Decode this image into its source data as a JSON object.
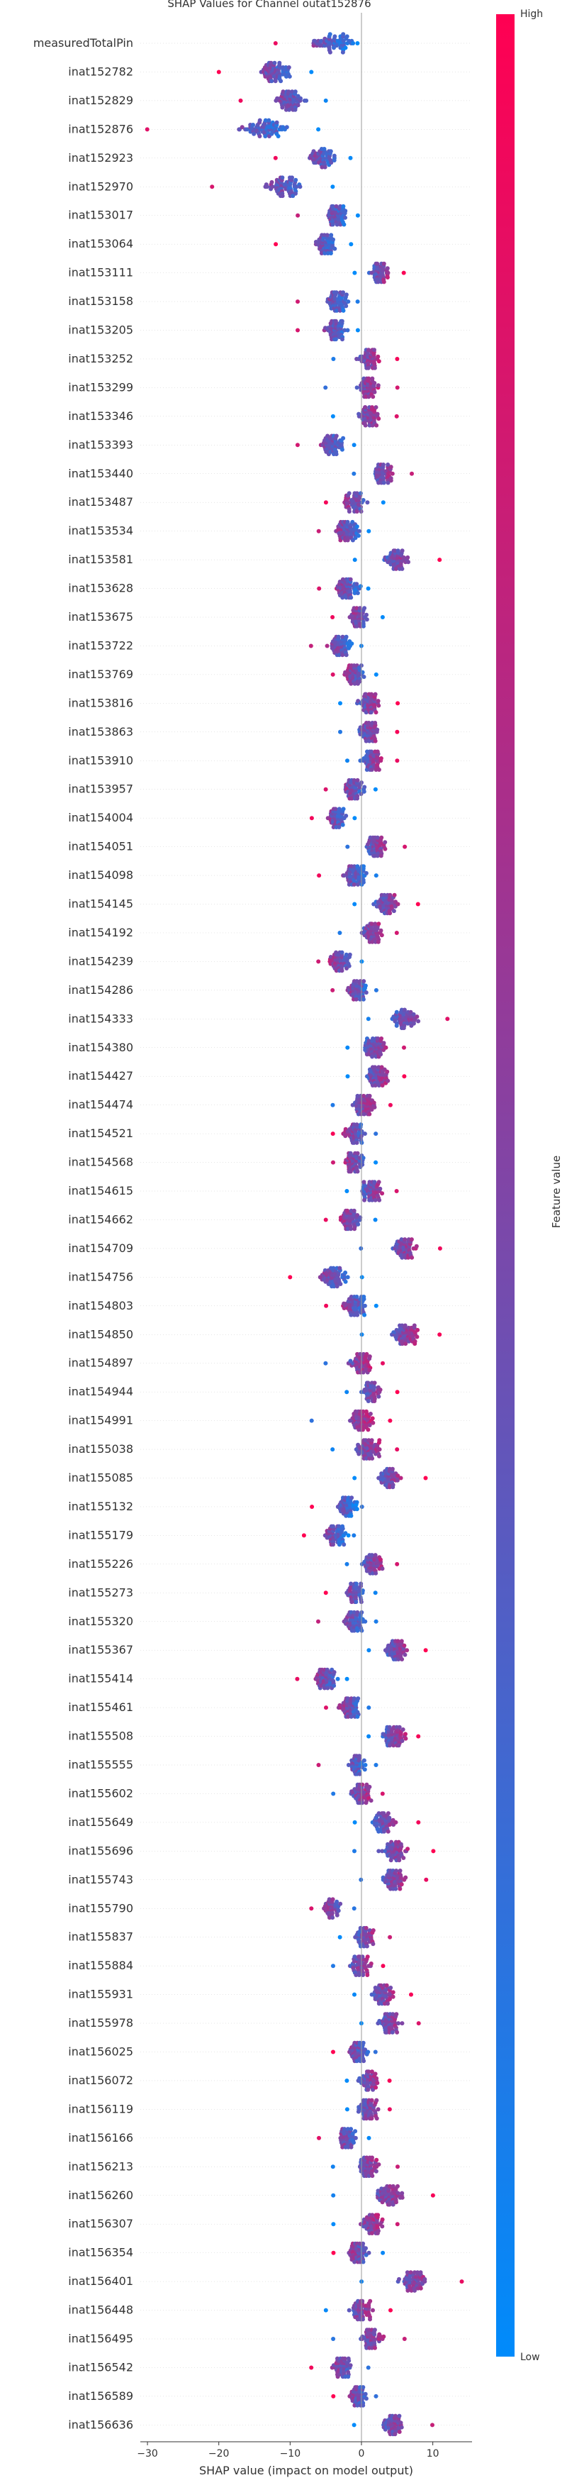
{
  "chart_data": {
    "type": "scatter",
    "subtype": "beeswarm",
    "title": "SHAP Values for Channel outat152876",
    "xlabel": "SHAP value (impact on model output)",
    "xlim": [
      -31,
      15.5
    ],
    "xticks": [
      -30,
      -20,
      -10,
      0,
      10
    ],
    "colorbar": {
      "label": "Feature value",
      "high_label": "High",
      "low_label": "Low",
      "high_color": "#ff0052",
      "low_color": "#008bfb"
    },
    "features": [
      {
        "name": "measuredTotalPin",
        "min": -12,
        "max": -0.5,
        "center": -4,
        "spread": 4
      },
      {
        "name": "inat152782",
        "min": -20,
        "max": -7,
        "center": -12,
        "spread": 3
      },
      {
        "name": "inat152829",
        "min": -17,
        "max": -5,
        "center": -10,
        "spread": 3
      },
      {
        "name": "inat152876",
        "min": -30,
        "max": -6,
        "center": -14,
        "spread": 4
      },
      {
        "name": "inat152923",
        "min": -12,
        "max": -1.5,
        "center": -5.5,
        "spread": 2.5
      },
      {
        "name": "inat152970",
        "min": -21,
        "max": -4,
        "center": -11,
        "spread": 3.5
      },
      {
        "name": "inat153017",
        "min": -9,
        "max": -0.5,
        "center": -3.5,
        "spread": 2
      },
      {
        "name": "inat153064",
        "min": -12,
        "max": -1.5,
        "center": -5,
        "spread": 2
      },
      {
        "name": "inat153111",
        "min": -1,
        "max": 6,
        "center": 2.5,
        "spread": 1.8
      },
      {
        "name": "inat153158",
        "min": -9,
        "max": -0.5,
        "center": -3.5,
        "spread": 2
      },
      {
        "name": "inat153205",
        "min": -9,
        "max": -0.5,
        "center": -3.5,
        "spread": 2
      },
      {
        "name": "inat153252",
        "min": -4,
        "max": 5,
        "center": 1,
        "spread": 2
      },
      {
        "name": "inat153299",
        "min": -5,
        "max": 5,
        "center": 1,
        "spread": 2
      },
      {
        "name": "inat153346",
        "min": -4,
        "max": 5,
        "center": 1,
        "spread": 2
      },
      {
        "name": "inat153393",
        "min": -9,
        "max": -1,
        "center": -4,
        "spread": 2
      },
      {
        "name": "inat153440",
        "min": -1,
        "max": 7,
        "center": 3,
        "spread": 2
      },
      {
        "name": "inat153487",
        "min": -5,
        "max": 3,
        "center": -1,
        "spread": 2
      },
      {
        "name": "inat153534",
        "min": -6,
        "max": 1,
        "center": -2,
        "spread": 2
      },
      {
        "name": "inat153581",
        "min": -1,
        "max": 11,
        "center": 5,
        "spread": 2.5
      },
      {
        "name": "inat153628",
        "min": -6,
        "max": 1,
        "center": -2,
        "spread": 2
      },
      {
        "name": "inat153675",
        "min": -4,
        "max": 3,
        "center": -0.5,
        "spread": 1.8
      },
      {
        "name": "inat153722",
        "min": -7,
        "max": 0,
        "center": -3,
        "spread": 2
      },
      {
        "name": "inat153769",
        "min": -4,
        "max": 2,
        "center": -1,
        "spread": 1.8
      },
      {
        "name": "inat153816",
        "min": -3,
        "max": 5,
        "center": 1,
        "spread": 2
      },
      {
        "name": "inat153863",
        "min": -3,
        "max": 5,
        "center": 1,
        "spread": 2
      },
      {
        "name": "inat153910",
        "min": -2,
        "max": 5,
        "center": 1.5,
        "spread": 1.8
      },
      {
        "name": "inat153957",
        "min": -5,
        "max": 2,
        "center": -1,
        "spread": 1.8
      },
      {
        "name": "inat154004",
        "min": -7,
        "max": -1,
        "center": -3.5,
        "spread": 1.8
      },
      {
        "name": "inat154051",
        "min": -2,
        "max": 6,
        "center": 2,
        "spread": 2
      },
      {
        "name": "inat154098",
        "min": -6,
        "max": 2,
        "center": -1,
        "spread": 2
      },
      {
        "name": "inat154145",
        "min": -1,
        "max": 8,
        "center": 3.5,
        "spread": 2
      },
      {
        "name": "inat154192",
        "min": -3,
        "max": 5,
        "center": 1.5,
        "spread": 2
      },
      {
        "name": "inat154239",
        "min": -6,
        "max": 0,
        "center": -3,
        "spread": 1.8
      },
      {
        "name": "inat154286",
        "min": -4,
        "max": 2,
        "center": -0.5,
        "spread": 1.8
      },
      {
        "name": "inat154333",
        "min": 1,
        "max": 12,
        "center": 6,
        "spread": 2.5
      },
      {
        "name": "inat154380",
        "min": -2,
        "max": 6,
        "center": 2,
        "spread": 2
      },
      {
        "name": "inat154427",
        "min": -2,
        "max": 6,
        "center": 2,
        "spread": 2
      },
      {
        "name": "inat154474",
        "min": -4,
        "max": 4,
        "center": 0.5,
        "spread": 2
      },
      {
        "name": "inat154521",
        "min": -4,
        "max": 2,
        "center": -1,
        "spread": 1.8
      },
      {
        "name": "inat154568",
        "min": -4,
        "max": 2,
        "center": -1,
        "spread": 1.8
      },
      {
        "name": "inat154615",
        "min": -2,
        "max": 5,
        "center": 1.5,
        "spread": 2
      },
      {
        "name": "inat154662",
        "min": -5,
        "max": 2,
        "center": -1.5,
        "spread": 1.8
      },
      {
        "name": "inat154709",
        "min": 0,
        "max": 11,
        "center": 6,
        "spread": 2.5
      },
      {
        "name": "inat154756",
        "min": -10,
        "max": 0,
        "center": -4,
        "spread": 2.5
      },
      {
        "name": "inat154803",
        "min": -5,
        "max": 2,
        "center": -1,
        "spread": 2
      },
      {
        "name": "inat154850",
        "min": 0,
        "max": 11,
        "center": 6,
        "spread": 2.5
      },
      {
        "name": "inat154897",
        "min": -5,
        "max": 3,
        "center": 0,
        "spread": 2
      },
      {
        "name": "inat154944",
        "min": -2,
        "max": 5,
        "center": 1.5,
        "spread": 1.8
      },
      {
        "name": "inat154991",
        "min": -7,
        "max": 4,
        "center": 0,
        "spread": 2
      },
      {
        "name": "inat155038",
        "min": -4,
        "max": 5,
        "center": 1,
        "spread": 2
      },
      {
        "name": "inat155085",
        "min": -1,
        "max": 9,
        "center": 4,
        "spread": 2.2
      },
      {
        "name": "inat155132",
        "min": -7,
        "max": 0,
        "center": -2,
        "spread": 1.8
      },
      {
        "name": "inat155179",
        "min": -8,
        "max": -1,
        "center": -3.5,
        "spread": 2
      },
      {
        "name": "inat155226",
        "min": -2,
        "max": 5,
        "center": 1.5,
        "spread": 1.8
      },
      {
        "name": "inat155273",
        "min": -5,
        "max": 2,
        "center": -1,
        "spread": 1.8
      },
      {
        "name": "inat155320",
        "min": -6,
        "max": 2,
        "center": -1,
        "spread": 2
      },
      {
        "name": "inat155367",
        "min": 1,
        "max": 9,
        "center": 5,
        "spread": 2
      },
      {
        "name": "inat155414",
        "min": -9,
        "max": -2,
        "center": -5,
        "spread": 2
      },
      {
        "name": "inat155461",
        "min": -5,
        "max": 1,
        "center": -1.5,
        "spread": 1.8
      },
      {
        "name": "inat155508",
        "min": 1,
        "max": 8,
        "center": 4.5,
        "spread": 2
      },
      {
        "name": "inat155555",
        "min": -6,
        "max": 2,
        "center": -0.5,
        "spread": 1.8
      },
      {
        "name": "inat155602",
        "min": -4,
        "max": 3,
        "center": 0,
        "spread": 1.8
      },
      {
        "name": "inat155649",
        "min": -1,
        "max": 8,
        "center": 3,
        "spread": 2
      },
      {
        "name": "inat155696",
        "min": -1,
        "max": 10,
        "center": 4.5,
        "spread": 2.5
      },
      {
        "name": "inat155743",
        "min": 0,
        "max": 9,
        "center": 4.5,
        "spread": 2
      },
      {
        "name": "inat155790",
        "min": -7,
        "max": -1,
        "center": -4,
        "spread": 1.8
      },
      {
        "name": "inat155837",
        "min": -3,
        "max": 4,
        "center": 0.5,
        "spread": 1.8
      },
      {
        "name": "inat155884",
        "min": -4,
        "max": 3,
        "center": 0,
        "spread": 1.8
      },
      {
        "name": "inat155931",
        "min": -1,
        "max": 7,
        "center": 3,
        "spread": 2
      },
      {
        "name": "inat155978",
        "min": 0,
        "max": 8,
        "center": 4,
        "spread": 2
      },
      {
        "name": "inat156025",
        "min": -4,
        "max": 2,
        "center": -0.5,
        "spread": 1.8
      },
      {
        "name": "inat156072",
        "min": -2,
        "max": 4,
        "center": 1,
        "spread": 1.8
      },
      {
        "name": "inat156119",
        "min": -2,
        "max": 4,
        "center": 1,
        "spread": 1.8
      },
      {
        "name": "inat156166",
        "min": -6,
        "max": 1,
        "center": -2,
        "spread": 1.8
      },
      {
        "name": "inat156213",
        "min": -4,
        "max": 5,
        "center": 1,
        "spread": 2
      },
      {
        "name": "inat156260",
        "min": -4,
        "max": 10,
        "center": 4,
        "spread": 2.5
      },
      {
        "name": "inat156307",
        "min": -4,
        "max": 5,
        "center": 1.5,
        "spread": 2
      },
      {
        "name": "inat156354",
        "min": -4,
        "max": 3,
        "center": -0.5,
        "spread": 1.8
      },
      {
        "name": "inat156401",
        "min": 0,
        "max": 14,
        "center": 7,
        "spread": 2.5
      },
      {
        "name": "inat156448",
        "min": -5,
        "max": 4,
        "center": 0,
        "spread": 2
      },
      {
        "name": "inat156495",
        "min": -4,
        "max": 6,
        "center": 1.5,
        "spread": 2
      },
      {
        "name": "inat156542",
        "min": -7,
        "max": 1,
        "center": -2.5,
        "spread": 2
      },
      {
        "name": "inat156589",
        "min": -4,
        "max": 2,
        "center": -0.5,
        "spread": 1.8
      },
      {
        "name": "inat156636",
        "min": -1,
        "max": 10,
        "center": 4.5,
        "spread": 2.2
      }
    ]
  }
}
